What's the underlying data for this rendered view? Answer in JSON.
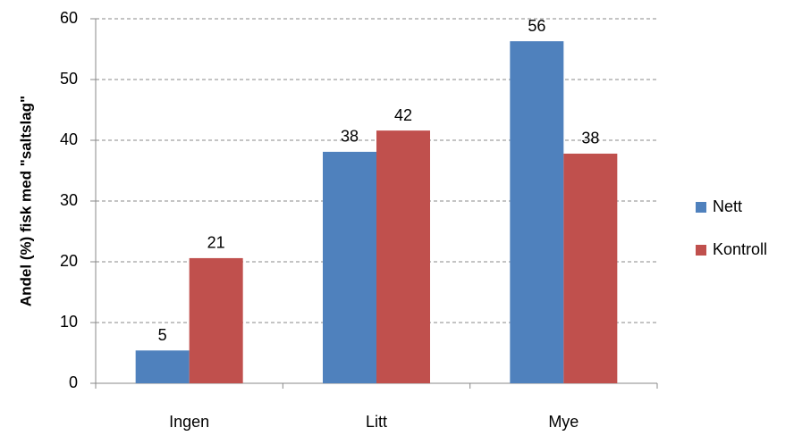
{
  "chart_data": {
    "type": "bar",
    "y_label": "Andel (%) fisk med \"saltslag\"",
    "categories": [
      "Ingen",
      "Litt",
      "Mye"
    ],
    "series": [
      {
        "name": "Nett",
        "color": "#4f81bd",
        "values": [
          5.4,
          38.1,
          56.3
        ],
        "value_labels": [
          "5",
          "38",
          "56"
        ]
      },
      {
        "name": "Kontroll",
        "color": "#c0504d",
        "values": [
          20.6,
          41.6,
          37.8
        ],
        "value_labels": [
          "21",
          "42",
          "38"
        ]
      }
    ],
    "ylim": [
      0,
      60
    ],
    "yticks": [
      0,
      10,
      20,
      30,
      40,
      50,
      60
    ],
    "grid": true,
    "legend": "right"
  }
}
